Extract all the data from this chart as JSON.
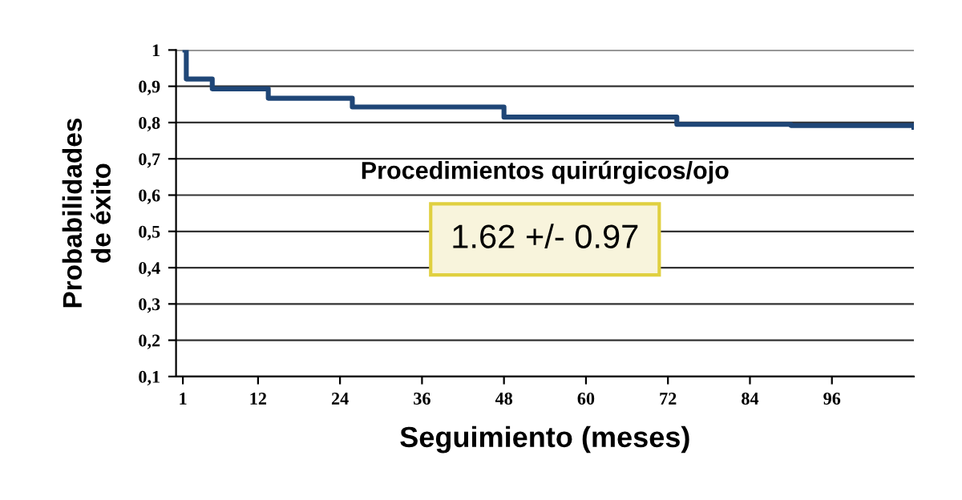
{
  "chart_data": {
    "type": "step",
    "xlabel": "Seguimiento (meses)",
    "ylabel": "Probabilidades\nde éxito",
    "annotations": [
      "Procedimientos quirúrgicos/ojo",
      "1.62 +/- 0.97"
    ],
    "series": [
      {
        "color": "#1f4677",
        "x": [
          1.3,
          1.5,
          5.3,
          13.5,
          25.8,
          48,
          73.3,
          90,
          108
        ],
        "values": [
          1,
          0.92,
          0.893,
          0.867,
          0.843,
          0.815,
          0.795,
          0.792,
          0.787
        ]
      }
    ],
    "xlim": [
      0,
      108
    ],
    "xticks": [
      1,
      12,
      24,
      36,
      48,
      60,
      72,
      84,
      96
    ],
    "ylim": [
      0.1,
      1
    ],
    "yticks": [
      {
        "value": 0.1,
        "label": "0,1"
      },
      {
        "value": 0.2,
        "label": "0,2"
      },
      {
        "value": 0.3,
        "label": "0,3"
      },
      {
        "value": 0.4,
        "label": "0,4"
      },
      {
        "value": 0.5,
        "label": "0,5"
      },
      {
        "value": 0.6,
        "label": "0,6"
      },
      {
        "value": 0.7,
        "label": "0,7"
      },
      {
        "value": 0.8,
        "label": "0,8"
      },
      {
        "value": 0.9,
        "label": "0,9"
      },
      {
        "value": 1,
        "label": "1"
      }
    ],
    "grid": "y",
    "marker": "none",
    "line_style": "solid"
  }
}
